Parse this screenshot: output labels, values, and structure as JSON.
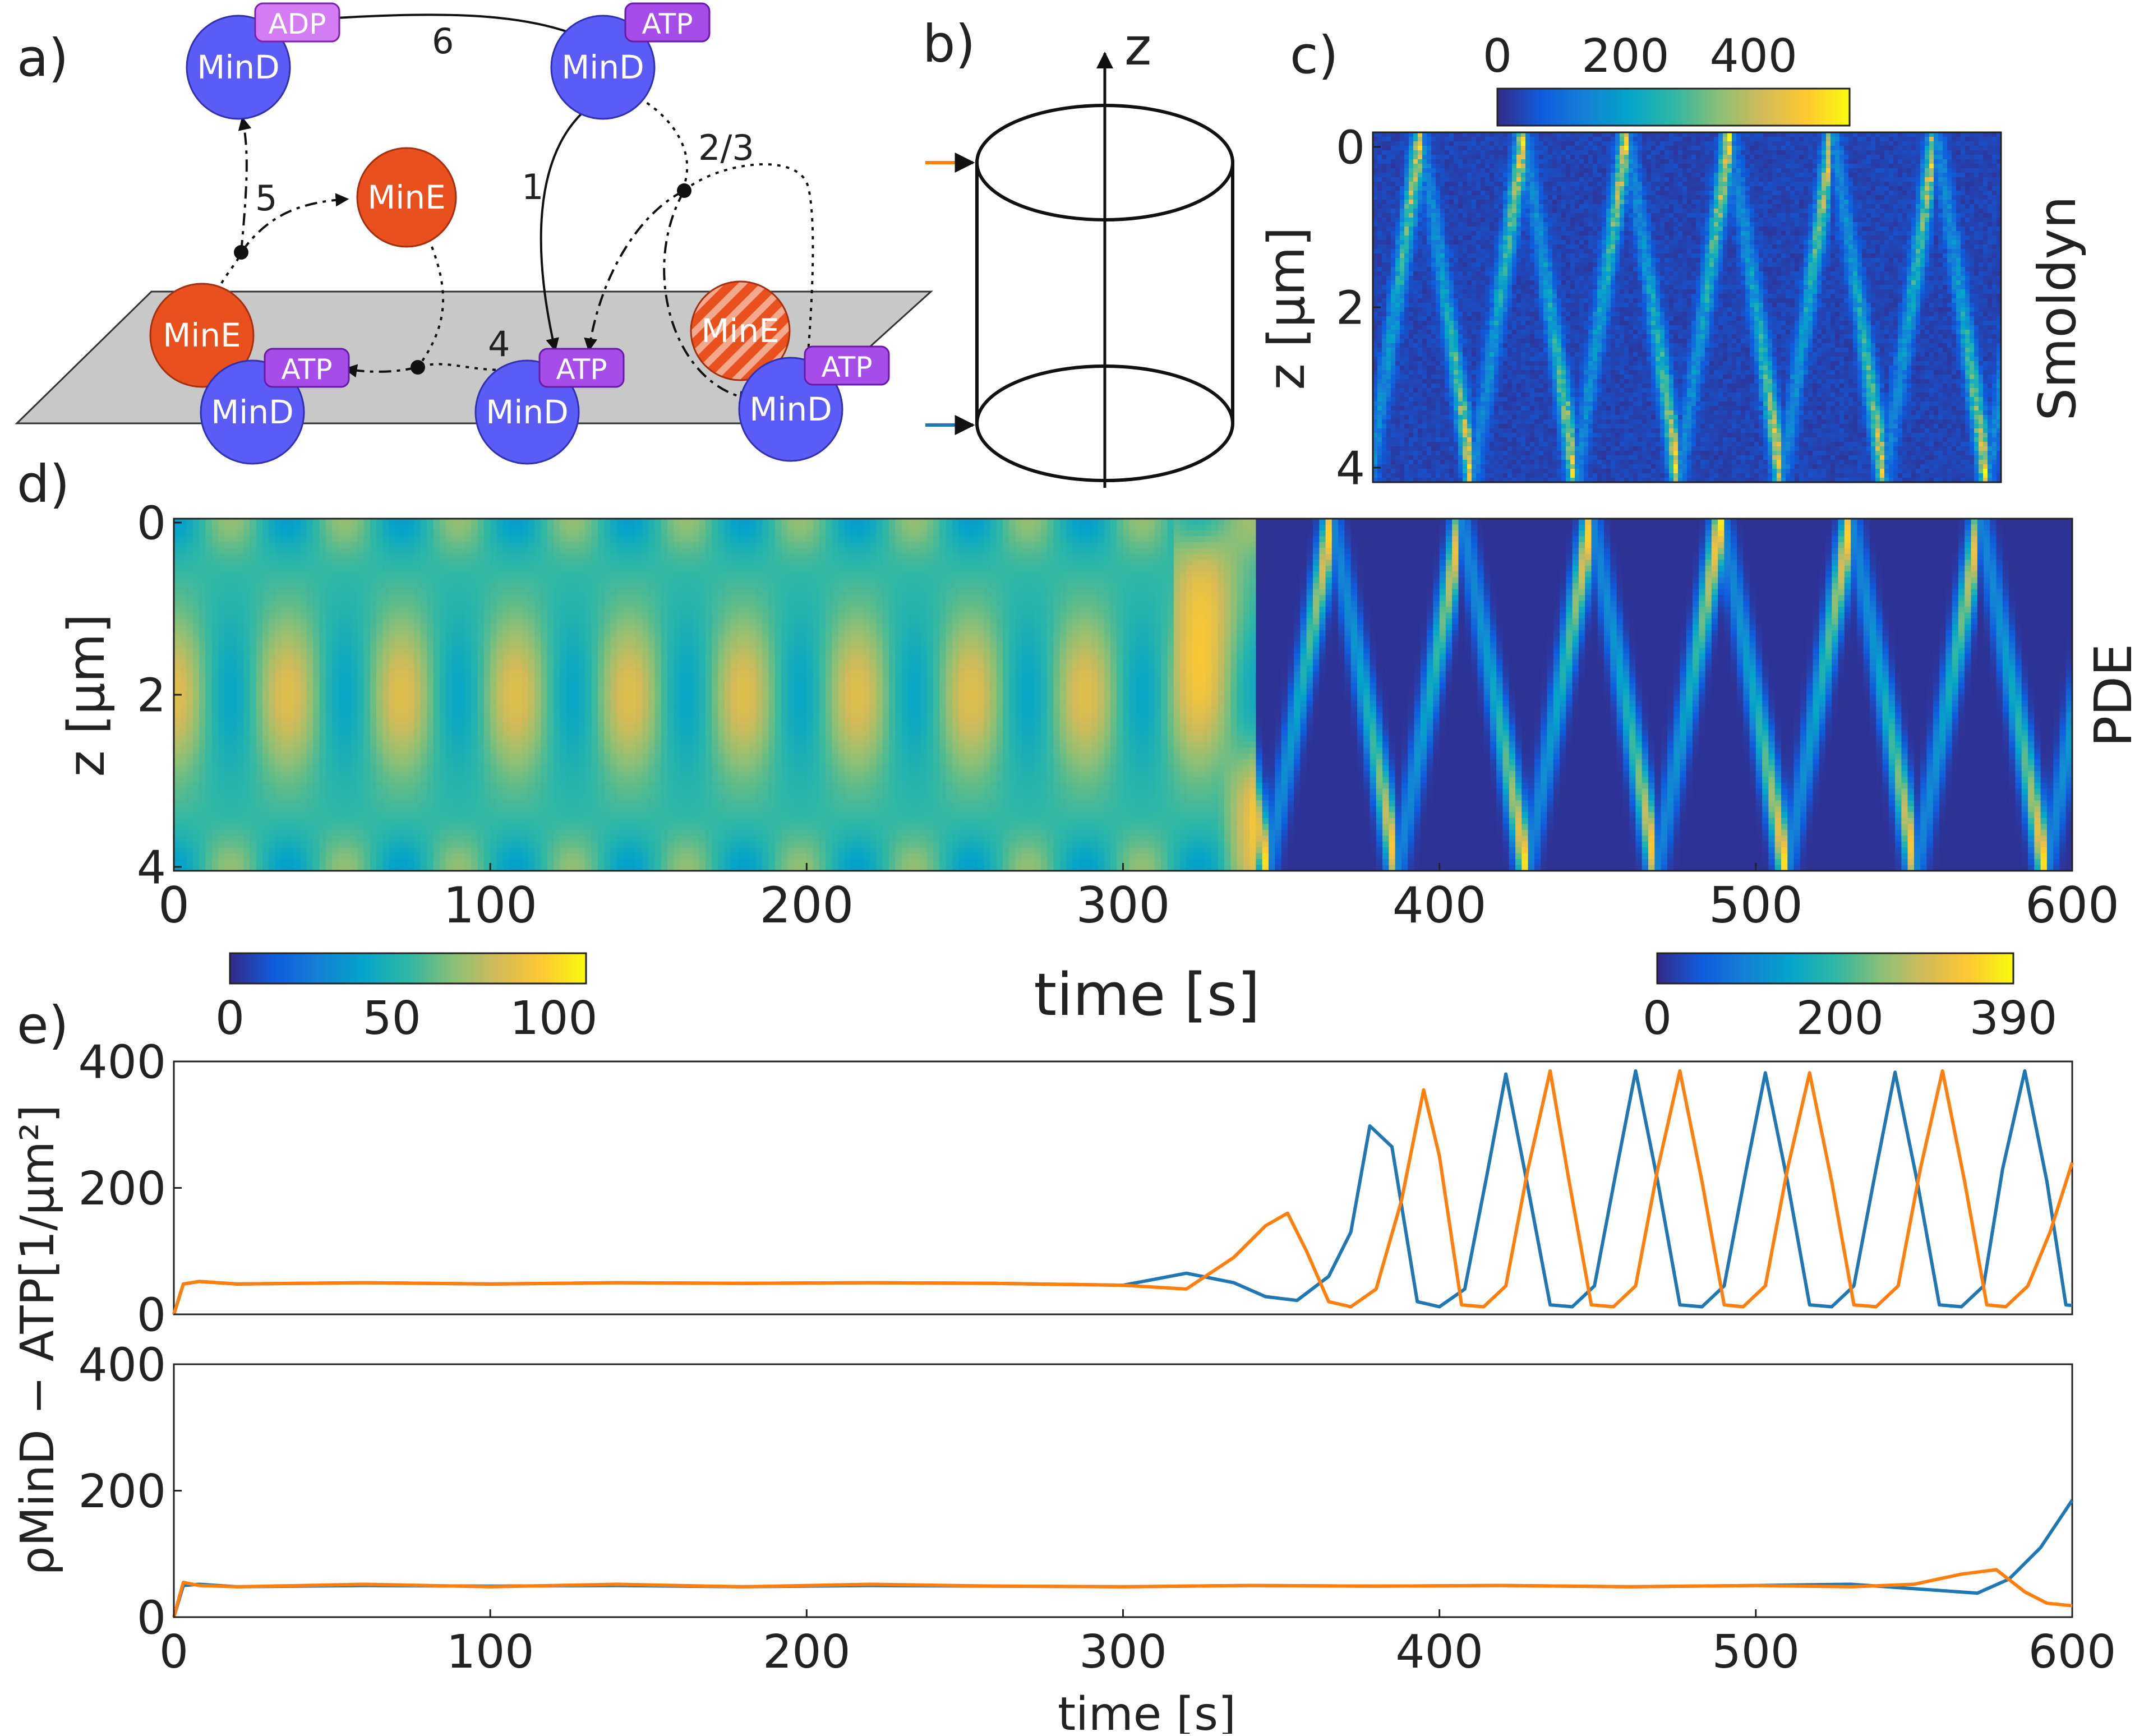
{
  "palette": {
    "parula": [
      "#352a87",
      "#0f5cdd",
      "#1481d6",
      "#06a4ca",
      "#2eb7a4",
      "#87bf77",
      "#d1bb59",
      "#fec832",
      "#f9fb0e"
    ],
    "blue_trace": "#1f77b4",
    "orange_trace": "#ff7f0e",
    "mind": "#5b5bf5",
    "mine": "#e8501e",
    "tag": "#a64ce8",
    "tag_adp": "#d47cf2",
    "membrane": "#c8c8c8"
  },
  "panels": {
    "a": {
      "label": "a)",
      "nodes": [
        {
          "id": "mind-adp",
          "protein": "MinD",
          "tag": "ADP"
        },
        {
          "id": "mind-atp-top",
          "protein": "MinD",
          "tag": "ATP"
        },
        {
          "id": "mine-free",
          "protein": "MinE"
        },
        {
          "id": "mine-membrane",
          "protein": "MinE"
        },
        {
          "id": "mind-membrane-left",
          "protein": "MinD",
          "tag": "ATP"
        },
        {
          "id": "mind-membrane-mid",
          "protein": "MinD",
          "tag": "ATP"
        },
        {
          "id": "mine-hatched",
          "protein": "MinE"
        },
        {
          "id": "mind-membrane-right",
          "protein": "MinD",
          "tag": "ATP"
        }
      ],
      "reaction_labels": [
        "6",
        "1",
        "2/3",
        "5",
        "4"
      ]
    },
    "b": {
      "label": "b)",
      "axis_label": "z"
    },
    "c": {
      "label": "c)",
      "side_label": "Smoldyn",
      "ylabel": "z [µm]",
      "yticks": [
        "0",
        "2",
        "4"
      ],
      "colorbar_ticks": [
        "0",
        "200",
        "400"
      ]
    },
    "d": {
      "label": "d)",
      "side_label": "PDE",
      "ylabel": "z [µm]",
      "xlabel": "time [s]",
      "yticks": [
        "0",
        "2",
        "4"
      ],
      "xticks": [
        "0",
        "100",
        "200",
        "300",
        "400",
        "500",
        "600"
      ],
      "colorbar_left_ticks": [
        "0",
        "50",
        "100"
      ],
      "colorbar_right_ticks": [
        "0",
        "200",
        "390"
      ]
    },
    "e": {
      "label": "e)",
      "ylabel": "ρMinD − ATP[1/µm²]",
      "xlabel": "time [s]",
      "yticks": [
        "0",
        "200",
        "400"
      ],
      "xticks": [
        "0",
        "100",
        "200",
        "300",
        "400",
        "500",
        "600"
      ]
    }
  },
  "chart_data": [
    {
      "type": "heatmap",
      "panel": "c",
      "title": "",
      "xlabel": "",
      "ylabel": "z [µm]",
      "ylim": [
        0,
        4
      ],
      "color_range": [
        0,
        550
      ],
      "colorbar_ticks": [
        0,
        200,
        400
      ],
      "t_range": [
        350,
        600
      ],
      "period_s": 41,
      "wave_shape": "sawtooth between poles, hot spots at z=0 and z=4"
    },
    {
      "type": "heatmap",
      "panel": "d",
      "title": "",
      "xlabel": "time [s]",
      "ylabel": "z [µm]",
      "xlim": [
        0,
        600
      ],
      "ylim": [
        0,
        4
      ],
      "phases": [
        {
          "t_range": [
            0,
            343
          ],
          "color_range": [
            0,
            110
          ],
          "colorbar_ticks": [
            0,
            50,
            100
          ],
          "pattern": "standing oscillation, period ~36 s"
        },
        {
          "t_range": [
            343,
            600
          ],
          "color_range": [
            0,
            390
          ],
          "colorbar_ticks": [
            0,
            200,
            390
          ],
          "pattern": "pole-to-pole traveling waves, period ~41 s"
        }
      ]
    },
    {
      "type": "line",
      "panel": "e-top",
      "xlim": [
        0,
        600
      ],
      "ylim": [
        0,
        400
      ],
      "series": [
        {
          "color": "#1f77b4",
          "x": [
            0,
            3,
            8,
            20,
            60,
            100,
            140,
            180,
            220,
            260,
            300,
            320,
            335,
            345,
            355,
            365,
            372,
            378,
            385,
            393,
            400,
            408,
            415,
            421,
            428,
            435,
            442,
            449,
            456,
            462,
            469,
            476,
            483,
            490,
            497,
            503,
            510,
            517,
            524,
            531,
            538,
            544,
            551,
            558,
            565,
            572,
            578,
            585,
            592,
            598,
            600
          ],
          "y": [
            0,
            48,
            52,
            48,
            50,
            48,
            50,
            49,
            50,
            49,
            46,
            65,
            50,
            28,
            22,
            60,
            130,
            298,
            265,
            20,
            12,
            40,
            220,
            380,
            200,
            15,
            12,
            45,
            230,
            385,
            210,
            15,
            12,
            45,
            230,
            382,
            210,
            15,
            12,
            45,
            230,
            383,
            210,
            15,
            12,
            45,
            230,
            385,
            210,
            15,
            14
          ]
        },
        {
          "color": "#ff7f0e",
          "x": [
            0,
            3,
            8,
            20,
            60,
            100,
            140,
            180,
            220,
            260,
            300,
            320,
            335,
            345,
            352,
            358,
            365,
            372,
            380,
            388,
            395,
            400,
            407,
            414,
            421,
            428,
            435,
            441,
            448,
            455,
            462,
            469,
            476,
            483,
            490,
            496,
            503,
            510,
            517,
            524,
            531,
            538,
            545,
            552,
            559,
            566,
            573,
            579,
            586,
            593,
            600
          ],
          "y": [
            0,
            48,
            52,
            48,
            50,
            48,
            50,
            49,
            50,
            49,
            46,
            40,
            90,
            140,
            160,
            100,
            20,
            12,
            40,
            180,
            355,
            250,
            15,
            12,
            45,
            230,
            385,
            210,
            15,
            12,
            45,
            230,
            385,
            210,
            15,
            12,
            45,
            230,
            382,
            210,
            15,
            12,
            45,
            230,
            385,
            210,
            15,
            12,
            45,
            130,
            240
          ]
        }
      ]
    },
    {
      "type": "line",
      "panel": "e-bottom",
      "xlim": [
        0,
        600
      ],
      "ylim": [
        0,
        400
      ],
      "series": [
        {
          "color": "#1f77b4",
          "x": [
            0,
            3,
            8,
            20,
            60,
            100,
            140,
            180,
            220,
            260,
            300,
            340,
            380,
            420,
            460,
            500,
            530,
            550,
            570,
            580,
            590,
            600
          ],
          "y": [
            0,
            50,
            52,
            48,
            50,
            49,
            50,
            48,
            50,
            49,
            48,
            50,
            49,
            50,
            48,
            50,
            52,
            45,
            38,
            60,
            110,
            185
          ]
        },
        {
          "color": "#ff7f0e",
          "x": [
            0,
            3,
            8,
            20,
            60,
            100,
            140,
            180,
            220,
            260,
            300,
            340,
            380,
            420,
            460,
            500,
            530,
            550,
            565,
            576,
            585,
            592,
            600
          ],
          "y": [
            0,
            55,
            50,
            48,
            52,
            48,
            52,
            48,
            52,
            49,
            48,
            50,
            49,
            50,
            48,
            50,
            48,
            52,
            68,
            75,
            40,
            22,
            18
          ]
        }
      ]
    }
  ]
}
